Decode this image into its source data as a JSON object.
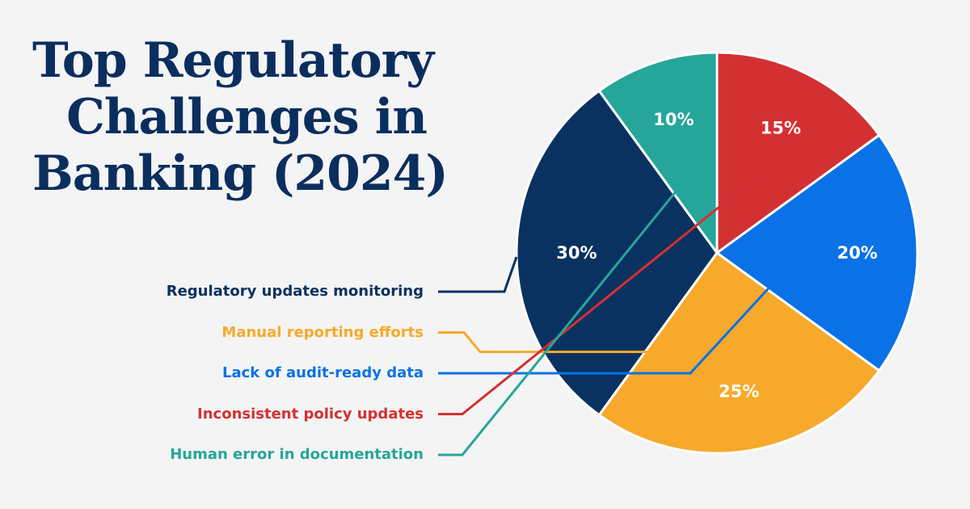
{
  "title_lines": [
    "Top Regulatory",
    "Challenges in",
    "Banking (2024)"
  ],
  "chart_data": {
    "type": "pie",
    "title": "Top Regulatory Challenges in Banking (2024)",
    "slices": [
      {
        "label": "Inconsistent policy updates",
        "value": 15,
        "display": "15%",
        "color": "#d33032"
      },
      {
        "label": "Lack of audit-ready data",
        "value": 20,
        "display": "20%",
        "color": "#0a72e6"
      },
      {
        "label": "Manual reporting efforts",
        "value": 25,
        "display": "25%",
        "color": "#f7a92b"
      },
      {
        "label": "Regulatory updates monitoring",
        "value": 30,
        "display": "30%",
        "color": "#0a3260"
      },
      {
        "label": "Human error in documentation",
        "value": 10,
        "display": "10%",
        "color": "#26a69a"
      }
    ],
    "legend_order": [
      "Regulatory updates monitoring",
      "Manual reporting efforts",
      "Lack of audit-ready data",
      "Inconsistent policy updates",
      "Human error in documentation"
    ]
  }
}
